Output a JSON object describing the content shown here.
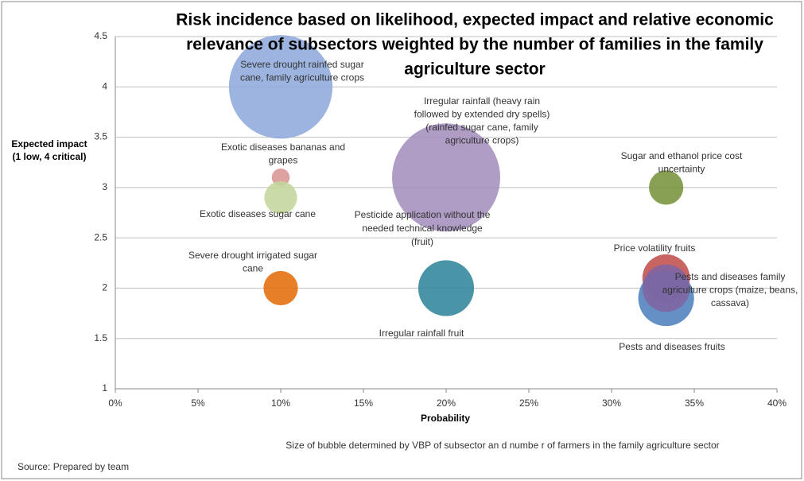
{
  "chart_data": {
    "type": "bubble",
    "title": [
      "Risk incidence based on likelihood, expected impact and relative economic",
      "relevance of subsectors weighted by the number of families in the family",
      "agriculture sector"
    ],
    "x_label": "Probability",
    "y_label": [
      "Expected impact",
      "(1 low, 4 critical)"
    ],
    "note": "Size of bubble determined by VBP of subsector  an d  numbe r of farmers in the family agriculture sector",
    "source": "Source: Prepared by team",
    "xlim": [
      0,
      40
    ],
    "xticks": [
      {
        "value": 0,
        "label": "0%"
      },
      {
        "value": 5,
        "label": "5%"
      },
      {
        "value": 10,
        "label": "10%"
      },
      {
        "value": 15,
        "label": "15%"
      },
      {
        "value": 20,
        "label": "20%"
      },
      {
        "value": 25,
        "label": "25%"
      },
      {
        "value": 30,
        "label": "30%"
      },
      {
        "value": 35,
        "label": "35%"
      },
      {
        "value": 40,
        "label": "40%"
      }
    ],
    "ylim": [
      1,
      4.5
    ],
    "yticks": [
      1,
      1.5,
      2,
      2.5,
      3,
      3.5,
      4,
      4.5
    ],
    "grid": true,
    "annotations": [
      [
        "Pesticide application without the",
        "needed technical knowledge",
        "(fruit)"
      ]
    ],
    "series": [
      {
        "name": [
          "Severe drought rainfed sugar",
          "cane, family agriculture crops"
        ],
        "color": "#8eaadb",
        "x": [
          10
        ],
        "values": [
          4
        ],
        "sizes": [
          100
        ]
      },
      {
        "name": [
          "Irregular rainfall (heavy rain",
          "followed by extended dry spells)",
          "(rainfed sugar cane, family",
          "agriculture crops)"
        ],
        "color": "#a48fbe",
        "x": [
          20
        ],
        "values": [
          3.1
        ],
        "sizes": [
          109
        ]
      },
      {
        "name": [
          "Exotic diseases bananas and",
          "grapes"
        ],
        "color": "#d99694",
        "x": [
          10
        ],
        "values": [
          3.1
        ],
        "sizes": [
          3
        ]
      },
      {
        "name": [
          "Exotic diseases sugar cane"
        ],
        "color": "#c3d69b",
        "x": [
          10
        ],
        "values": [
          2.9
        ],
        "sizes": [
          10
        ]
      },
      {
        "name": [
          "Sugar and ethanol price cost",
          "uncertainty"
        ],
        "color": "#77933c",
        "x": [
          33.3
        ],
        "values": [
          3
        ],
        "sizes": [
          11
        ]
      },
      {
        "name": [
          "Severe drought irrigated sugar",
          "cane"
        ],
        "color": "#e46c0a",
        "x": [
          10
        ],
        "values": [
          2
        ],
        "sizes": [
          11
        ]
      },
      {
        "name": [
          "Irregular rainfall fruit"
        ],
        "color": "#31859c",
        "x": [
          20
        ],
        "values": [
          2
        ],
        "sizes": [
          29
        ]
      },
      {
        "name": [
          "Price volatility fruits"
        ],
        "color": "#c0504d",
        "x": [
          33.3
        ],
        "values": [
          2.1
        ],
        "sizes": [
          21
        ]
      },
      {
        "name": [
          "Pests and diseases fruits"
        ],
        "color": "#4f81bd",
        "x": [
          33.3
        ],
        "values": [
          1.9
        ],
        "sizes": [
          29
        ]
      },
      {
        "name": [
          "Pests and diseases family",
          "agriculture crops (maize, beans,",
          "cassava)"
        ],
        "color": "#8064a2",
        "x": [
          33.3
        ],
        "values": [
          2
        ],
        "sizes": [
          21
        ]
      }
    ]
  }
}
